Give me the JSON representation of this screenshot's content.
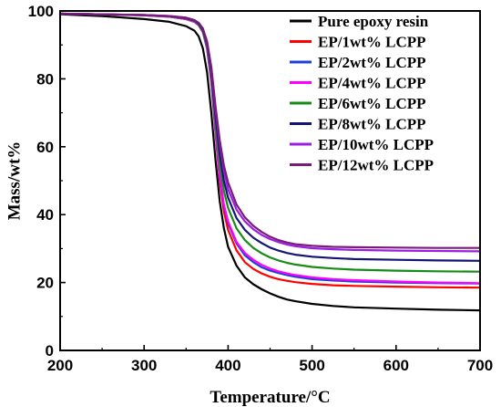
{
  "chart_data": {
    "type": "line",
    "title": "",
    "xlabel": "Temperature/°C",
    "ylabel": "Mass/wt%",
    "xlim": [
      200,
      700
    ],
    "ylim": [
      0,
      100
    ],
    "xticks": [
      "200",
      "300",
      "400",
      "500",
      "600",
      "700"
    ],
    "yticks": [
      "0",
      "20",
      "40",
      "60",
      "80",
      "100"
    ],
    "grid": false,
    "legend": "top-right",
    "x": [
      200,
      250,
      300,
      330,
      350,
      360,
      365,
      370,
      375,
      380,
      385,
      390,
      395,
      400,
      410,
      420,
      430,
      440,
      450,
      460,
      470,
      480,
      500,
      525,
      550,
      600,
      650,
      700
    ],
    "series": [
      {
        "name": "Pure epoxy resin",
        "color": "#000000",
        "values": [
          99.0,
          98.5,
          97.6,
          96.8,
          95.5,
          94.2,
          92.5,
          89.0,
          82.0,
          70.0,
          56.0,
          44.0,
          36.0,
          30.5,
          25.0,
          21.5,
          19.5,
          18.0,
          16.8,
          15.8,
          15.0,
          14.5,
          13.7,
          13.1,
          12.7,
          12.3,
          12.0,
          11.8
        ]
      },
      {
        "name": "EP/1wt% LCPP",
        "color": "#ff0000",
        "values": [
          99.2,
          99.0,
          98.7,
          98.3,
          97.6,
          96.8,
          95.8,
          93.8,
          89.0,
          79.0,
          64.0,
          50.0,
          41.0,
          35.5,
          29.5,
          26.0,
          24.0,
          22.7,
          21.7,
          21.0,
          20.5,
          20.1,
          19.6,
          19.2,
          19.0,
          18.8,
          18.6,
          18.5
        ]
      },
      {
        "name": "EP/2wt% LCPP",
        "color": "#1f3fd4",
        "values": [
          99.2,
          99.0,
          98.7,
          98.3,
          97.6,
          96.8,
          95.8,
          93.8,
          89.0,
          79.5,
          64.5,
          51.0,
          42.5,
          37.5,
          31.5,
          28.0,
          26.0,
          24.5,
          23.5,
          22.8,
          22.2,
          21.7,
          21.0,
          20.6,
          20.3,
          20.0,
          19.8,
          19.7
        ]
      },
      {
        "name": "EP/4wt% LCPP",
        "color": "#ff00ff",
        "values": [
          99.2,
          99.0,
          98.7,
          98.3,
          97.6,
          96.8,
          95.8,
          93.8,
          89.5,
          80.0,
          65.0,
          51.5,
          43.0,
          38.0,
          32.0,
          28.7,
          26.7,
          25.2,
          24.1,
          23.3,
          22.7,
          22.2,
          21.5,
          21.0,
          20.7,
          20.3,
          20.0,
          19.8
        ]
      },
      {
        "name": "EP/6wt% LCPP",
        "color": "#168c16",
        "values": [
          99.2,
          99.0,
          98.8,
          98.4,
          97.8,
          97.0,
          96.0,
          94.0,
          90.0,
          81.0,
          67.0,
          55.0,
          47.0,
          42.0,
          36.0,
          32.5,
          30.2,
          28.6,
          27.4,
          26.5,
          25.8,
          25.3,
          24.6,
          24.1,
          23.8,
          23.5,
          23.3,
          23.2
        ]
      },
      {
        "name": "EP/8wt% LCPP",
        "color": "#141478",
        "values": [
          99.2,
          99.0,
          98.8,
          98.5,
          97.9,
          97.2,
          96.3,
          94.5,
          90.5,
          82.0,
          69.0,
          58.0,
          50.0,
          45.0,
          39.0,
          35.5,
          33.2,
          31.6,
          30.3,
          29.4,
          28.7,
          28.2,
          27.6,
          27.2,
          26.9,
          26.7,
          26.5,
          26.4
        ]
      },
      {
        "name": "EP/10wt% LCPP",
        "color": "#9a1fe0",
        "values": [
          99.2,
          99.0,
          98.8,
          98.5,
          98.0,
          97.3,
          96.5,
          94.8,
          91.0,
          83.0,
          71.0,
          61.0,
          53.0,
          47.5,
          41.5,
          38.0,
          35.7,
          34.0,
          32.8,
          31.9,
          31.2,
          30.7,
          30.1,
          29.8,
          29.6,
          29.4,
          29.3,
          29.2
        ]
      },
      {
        "name": "EP/12wt% LCPP",
        "color": "#7a1a7a",
        "values": [
          99.2,
          99.0,
          98.8,
          98.5,
          98.0,
          97.3,
          96.5,
          94.8,
          91.0,
          83.5,
          72.0,
          62.0,
          54.5,
          49.5,
          43.0,
          39.2,
          36.7,
          34.9,
          33.5,
          32.5,
          31.8,
          31.3,
          30.8,
          30.5,
          30.4,
          30.3,
          30.2,
          30.2
        ]
      }
    ]
  }
}
